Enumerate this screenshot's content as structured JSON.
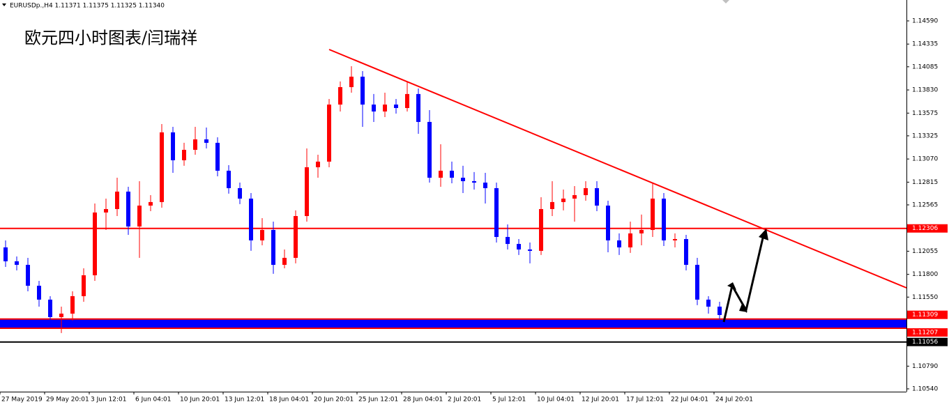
{
  "chart_data": {
    "type": "candlestick",
    "title": "EURUSDp.,H4  1.11371 1.11375 1.11325 1.11340",
    "annotation": "欧元四小时图表/闫瑞祥",
    "up_color": "#ff0000",
    "down_color": "#0000ff",
    "categories": [
      "27 May 2019",
      null,
      null,
      null,
      "29 May 20:01",
      null,
      null,
      null,
      "3 Jun 12:01",
      null,
      null,
      null,
      "6 Jun 04:01",
      null,
      null,
      null,
      "10 Jun 20:01",
      null,
      null,
      null,
      "13 Jun 12:01",
      null,
      null,
      null,
      "18 Jun 04:01",
      null,
      null,
      null,
      "20 Jun 20:01",
      null,
      null,
      null,
      "25 Jun 12:01",
      null,
      null,
      null,
      "28 Jun 04:01",
      null,
      null,
      null,
      "2 Jul 20:01",
      null,
      null,
      null,
      "5 Jul 12:01",
      null,
      null,
      null,
      "10 Jul 04:01",
      null,
      null,
      null,
      "12 Jul 20:01",
      null,
      null,
      null,
      "17 Jul 12:01",
      null,
      null,
      null,
      "22 Jul 04:01",
      null,
      null,
      null,
      "24 Jul 20:01"
    ],
    "open": [
      1.12097,
      1.11944,
      1.11905,
      1.11675,
      1.11522,
      1.1133,
      1.11368,
      1.1156,
      1.1179,
      1.12481,
      1.12519,
      1.12711,
      1.12327,
      1.12557,
      1.12596,
      1.13363,
      1.13056,
      1.13171,
      1.13286,
      1.13248,
      1.12941,
      1.12749,
      1.12634,
      1.12174,
      1.12289,
      1.11905,
      1.11982,
      1.12442,
      1.12979,
      1.13041,
      1.13669,
      1.13861,
      1.13976,
      1.13669,
      1.13593,
      1.13669,
      1.13631,
      1.13785,
      1.13478,
      1.12864,
      1.12941,
      1.12864,
      1.12826,
      1.1281,
      1.12749,
      1.12212,
      1.12135,
      1.12074,
      1.12059,
      1.12519,
      1.12596,
      1.12634,
      1.12672,
      1.12749,
      1.12557,
      1.12174,
      1.12097,
      1.12251,
      1.12289,
      1.12634,
      1.12174,
      1.12189,
      1.11905,
      1.11522,
      1.11445
    ],
    "high": [
      1.12174,
      1.11997,
      1.11982,
      1.11729,
      1.1156,
      1.11445,
      1.11614,
      1.11867,
      1.1258,
      1.12634,
      1.12864,
      1.12764,
      1.12826,
      1.12672,
      1.13455,
      1.13424,
      1.13248,
      1.13424,
      1.13416,
      1.13309,
      1.13002,
      1.1281,
      1.12695,
      1.12419,
      1.12381,
      1.12074,
      1.12504,
      1.13186,
      1.13117,
      1.13731,
      1.13923,
      1.14091,
      1.14038,
      1.13785,
      1.138,
      1.13731,
      1.13915,
      1.13846,
      1.13608,
      1.13232,
      1.13041,
      1.12995,
      1.12926,
      1.12918,
      1.1281,
      1.1235,
      1.12189,
      1.12151,
      1.12649,
      1.12826,
      1.12734,
      1.12772,
      1.12826,
      1.12826,
      1.12611,
      1.12251,
      1.12381,
      1.12458,
      1.1281,
      1.12695,
      1.12251,
      1.12235,
      1.11982,
      1.1156,
      1.11499
    ],
    "low": [
      1.11882,
      1.11844,
      1.11614,
      1.11445,
      1.11269,
      1.11154,
      1.11292,
      1.11499,
      1.11729,
      1.12289,
      1.12442,
      1.12235,
      1.11982,
      1.12496,
      1.12534,
      1.12918,
      1.12995,
      1.13117,
      1.13186,
      1.12879,
      1.12688,
      1.12573,
      1.12059,
      1.1212,
      1.11806,
      1.11867,
      1.11921,
      1.12381,
      1.12864,
      1.12979,
      1.13593,
      1.138,
      1.13424,
      1.13478,
      1.13531,
      1.1357,
      1.13593,
      1.13347,
      1.1281,
      1.12764,
      1.12803,
      1.12695,
      1.12734,
      1.1258,
      1.12151,
      1.12074,
      1.12013,
      1.11921,
      1.12013,
      1.12442,
      1.12504,
      1.12381,
      1.12611,
      1.12496,
      1.12043,
      1.12013,
      1.12036,
      1.1212,
      1.12212,
      1.12112,
      1.12097,
      1.11844,
      1.11461,
      1.11368,
      1.11307
    ],
    "close": [
      1.11944,
      1.11905,
      1.11675,
      1.11522,
      1.1133,
      1.11368,
      1.1156,
      1.1179,
      1.12481,
      1.12519,
      1.12711,
      1.12327,
      1.12557,
      1.12596,
      1.13363,
      1.13056,
      1.13171,
      1.13286,
      1.13248,
      1.12941,
      1.12749,
      1.12634,
      1.12174,
      1.12289,
      1.11905,
      1.11982,
      1.12442,
      1.12979,
      1.13041,
      1.13669,
      1.13861,
      1.13976,
      1.13669,
      1.13593,
      1.13669,
      1.13631,
      1.13785,
      1.13478,
      1.12864,
      1.12941,
      1.12864,
      1.12826,
      1.1281,
      1.12749,
      1.12212,
      1.12135,
      1.12074,
      1.12059,
      1.12519,
      1.12596,
      1.12634,
      1.12672,
      1.12749,
      1.12557,
      1.12174,
      1.12097,
      1.12251,
      1.12289,
      1.12634,
      1.12174,
      1.12189,
      1.11905,
      1.11522,
      1.11445,
      1.11353
    ],
    "ylim": [
      1.10509,
      1.1482
    ],
    "yticks": [
      {
        "value": 1.1459,
        "label": "1.14590"
      },
      1.14335,
      1.14085,
      {
        "value": 1.1383,
        "label": "1.13830"
      },
      1.13575,
      1.13325,
      {
        "value": 1.1307,
        "label": "1.13070"
      },
      1.12815,
      1.12565,
      1.12055,
      {
        "value": 1.118,
        "label": "1.11800"
      },
      {
        "value": 1.1155,
        "label": "1.11550"
      },
      {
        "value": 1.1079,
        "label": "1.10790"
      },
      {
        "value": 1.1054,
        "label": "1.10540"
      }
    ],
    "levels": [
      {
        "value": 1.12306,
        "color": "#ff0000"
      },
      {
        "value": 1.11056,
        "color": "#000000"
      }
    ],
    "band": [
      1.11207,
      1.11309
    ],
    "band_color": "#0000ff",
    "band_edge_color": "#ff0000"
  }
}
